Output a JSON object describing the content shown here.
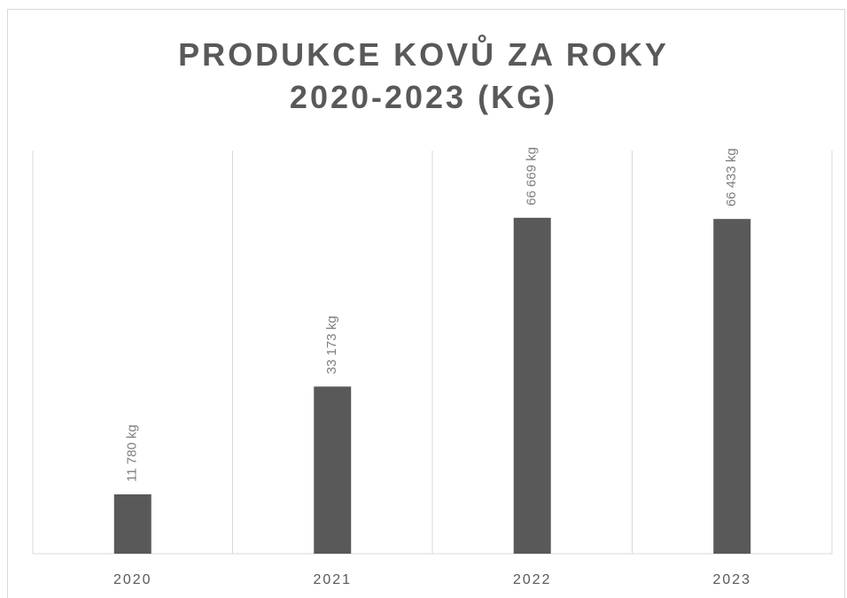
{
  "chart_data": {
    "type": "bar",
    "title": "PRODUKCE KOVŮ ZA ROKY 2020-2023 (KG)",
    "categories": [
      "2020",
      "2021",
      "2022",
      "2023"
    ],
    "values": [
      11780,
      33173,
      66669,
      66433
    ],
    "value_labels": [
      "11 780 kg",
      "33 173 kg",
      "66 669 kg",
      "66 433 kg"
    ],
    "color": "#595959",
    "ylim": [
      0,
      80000
    ]
  }
}
